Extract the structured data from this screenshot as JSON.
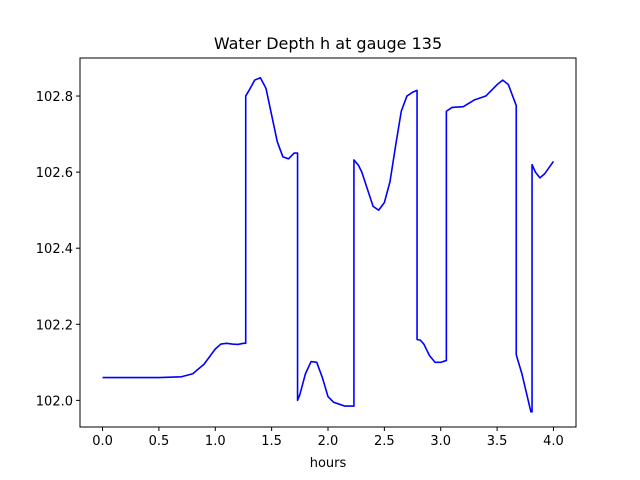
{
  "chart_data": {
    "type": "line",
    "title": "Water Depth h at gauge 135",
    "xlabel": "hours",
    "ylabel": "",
    "xlim": [
      -0.2,
      4.2
    ],
    "ylim": [
      101.93,
      102.9
    ],
    "xticks": [
      0.0,
      0.5,
      1.0,
      1.5,
      2.0,
      2.5,
      3.0,
      3.5,
      4.0
    ],
    "xtick_labels": [
      "0.0",
      "0.5",
      "1.0",
      "1.5",
      "2.0",
      "2.5",
      "3.0",
      "3.5",
      "4.0"
    ],
    "yticks": [
      102.0,
      102.2,
      102.4,
      102.6,
      102.8
    ],
    "ytick_labels": [
      "102.0",
      "102.2",
      "102.4",
      "102.6",
      "102.8"
    ],
    "grid": false,
    "legend": "none",
    "series": [
      {
        "color": "#0000ff",
        "x": [
          0.0,
          0.3,
          0.5,
          0.7,
          0.8,
          0.9,
          1.0,
          1.05,
          1.1,
          1.15,
          1.2,
          1.25,
          1.27,
          1.27,
          1.3,
          1.35,
          1.4,
          1.45,
          1.5,
          1.55,
          1.6,
          1.65,
          1.7,
          1.73,
          1.73,
          1.75,
          1.8,
          1.85,
          1.9,
          1.95,
          2.0,
          2.05,
          2.1,
          2.15,
          2.2,
          2.23,
          2.23,
          2.27,
          2.3,
          2.35,
          2.4,
          2.45,
          2.5,
          2.55,
          2.6,
          2.65,
          2.7,
          2.75,
          2.79,
          2.79,
          2.82,
          2.85,
          2.9,
          2.95,
          3.0,
          3.05,
          3.05,
          3.1,
          3.2,
          3.3,
          3.4,
          3.5,
          3.55,
          3.6,
          3.67,
          3.67,
          3.72,
          3.76,
          3.8,
          3.81,
          3.81,
          3.84,
          3.88,
          3.92,
          4.0
        ],
        "y": [
          102.06,
          102.06,
          102.06,
          102.062,
          102.07,
          102.095,
          102.135,
          102.148,
          102.15,
          102.148,
          102.147,
          102.15,
          102.15,
          102.8,
          102.815,
          102.842,
          102.848,
          102.82,
          102.75,
          102.68,
          102.64,
          102.635,
          102.65,
          102.65,
          102.0,
          102.015,
          102.07,
          102.102,
          102.1,
          102.06,
          102.01,
          101.995,
          101.99,
          101.985,
          101.985,
          101.985,
          102.632,
          102.618,
          102.6,
          102.555,
          102.51,
          102.5,
          102.52,
          102.575,
          102.67,
          102.76,
          102.8,
          102.81,
          102.815,
          102.16,
          102.158,
          102.148,
          102.118,
          102.1,
          102.1,
          102.105,
          102.76,
          102.77,
          102.772,
          102.79,
          102.8,
          102.83,
          102.842,
          102.83,
          102.775,
          102.12,
          102.07,
          102.02,
          101.97,
          101.97,
          102.62,
          102.6,
          102.585,
          102.595,
          102.628
        ]
      }
    ]
  }
}
